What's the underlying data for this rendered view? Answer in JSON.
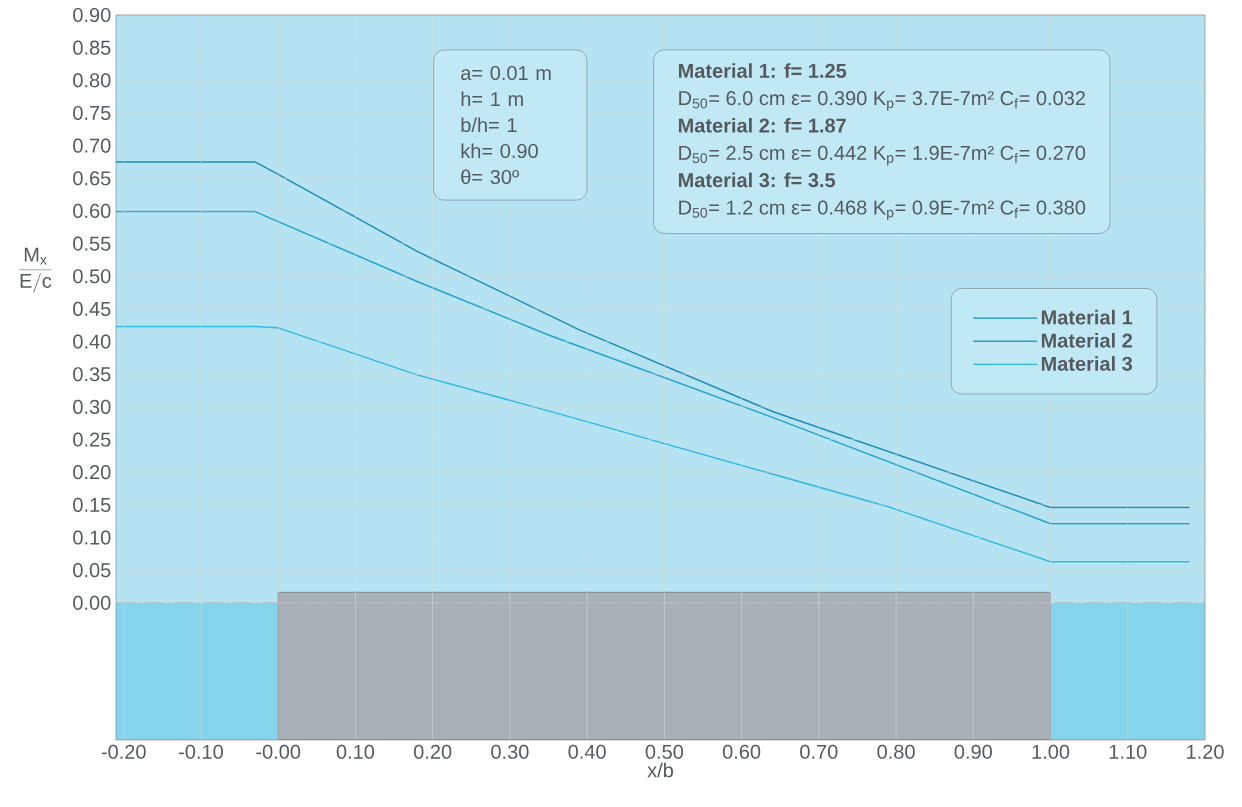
{
  "chart_data": {
    "type": "line",
    "xlabel": "x/b",
    "ylabel": "\\frac{\\mathrm{M_x}}{\\mathrm{E/c}}",
    "xlim": [
      -0.21,
      1.2
    ],
    "ylim": [
      -0.21,
      0.9
    ],
    "xticks": [
      {
        "value": -0.2,
        "label": "-0.20"
      },
      {
        "value": -0.1,
        "label": "-0.10"
      },
      {
        "value": 0,
        "label": "-0.00"
      },
      {
        "value": 0.1,
        "label": "0.10"
      },
      {
        "value": 0.2,
        "label": "0.20"
      },
      {
        "value": 0.3,
        "label": "0.30"
      },
      {
        "value": 0.4,
        "label": "0.40"
      },
      {
        "value": 0.5,
        "label": "0.50"
      },
      {
        "value": 0.6,
        "label": "0.60"
      },
      {
        "value": 0.7,
        "label": "0.70"
      },
      {
        "value": 0.8,
        "label": "0.80"
      },
      {
        "value": 0.9,
        "label": "0.90"
      },
      {
        "value": 1,
        "label": "1.00"
      },
      {
        "value": 1.1,
        "label": "1.10"
      },
      {
        "value": 1.2,
        "label": "1.20"
      }
    ],
    "yticks": [
      {
        "value": 0,
        "label": "0.00"
      },
      {
        "value": 0.05,
        "label": "0.05"
      },
      {
        "value": 0.1,
        "label": "0.10"
      },
      {
        "value": 0.15,
        "label": "0.15"
      },
      {
        "value": 0.2,
        "label": "0.20"
      },
      {
        "value": 0.25,
        "label": "0.25"
      },
      {
        "value": 0.3,
        "label": "0.30"
      },
      {
        "value": 0.35,
        "label": "0.35"
      },
      {
        "value": 0.4,
        "label": "0.40"
      },
      {
        "value": 0.45,
        "label": "0.45"
      },
      {
        "value": 0.5,
        "label": "0.50"
      },
      {
        "value": 0.55,
        "label": "0.55"
      },
      {
        "value": 0.6,
        "label": "0.60"
      },
      {
        "value": 0.65,
        "label": "0.65"
      },
      {
        "value": 0.7,
        "label": "0.70"
      },
      {
        "value": 0.75,
        "label": "0.75"
      },
      {
        "value": 0.8,
        "label": "0.80"
      },
      {
        "value": 0.85,
        "label": "0.85"
      },
      {
        "value": 0.9,
        "label": "0.90"
      }
    ],
    "grid": true,
    "legend": "right",
    "line_style": "solid",
    "series": [
      {
        "name": "Material 1",
        "color": "#1f8cb6",
        "x": [
          -0.21,
          -0.03,
          0,
          0.18,
          0.39,
          0.64,
          1.0,
          1.18
        ],
        "values": [
          0.675,
          0.675,
          0.656,
          0.538,
          0.418,
          0.293,
          0.146,
          0.146
        ]
      },
      {
        "name": "Material 2",
        "color": "#22a2cf",
        "x": [
          -0.21,
          -0.03,
          0.18,
          0.35,
          0.64,
          1.0,
          1.18
        ],
        "values": [
          0.599,
          0.599,
          0.492,
          0.41,
          0.284,
          0.121,
          0.121
        ]
      },
      {
        "name": "Material 3",
        "color": "#35b9e2",
        "x": [
          -0.21,
          -0.03,
          0,
          0.18,
          0.38,
          0.79,
          1.0,
          1.18
        ],
        "values": [
          0.423,
          0.423,
          0.421,
          0.349,
          0.284,
          0.147,
          0.063,
          0.063
        ]
      }
    ],
    "bands": [
      {
        "axis": "y",
        "from": -0.21,
        "to": 0,
        "color": "#86d4ec"
      },
      {
        "axis": "x",
        "from": 0,
        "to": 1,
        "color": "#a9b0b6"
      }
    ],
    "ref_lines": [
      {
        "axis": "y",
        "value": 0,
        "color": "#8a9499",
        "line_style": "dashed"
      }
    ],
    "annotations": [
      "a= 0.01 m",
      "h= 1 m",
      "b/h= 1",
      "kh= 0.90",
      "θ= 30º",
      "Material 1: f= 1.25",
      "D$_{50}$= 6.0 cm   ε= 0.390   K$_{p}$= 3.7E-7m²   C$_{f}$= 0.032",
      "Material 2: f= 1.87",
      "D$_{50}$= 2.5 cm   ε= 0.442   K$_{p}$= 1.9E-7m²   C$_{f}$= 0.270",
      "Material 3: f= 3.5",
      "D$_{50}$= 1.2 cm   ε= 0.468   K$_{p}$= 0.9E-7m²   C$_{f}$= 0.380"
    ]
  }
}
